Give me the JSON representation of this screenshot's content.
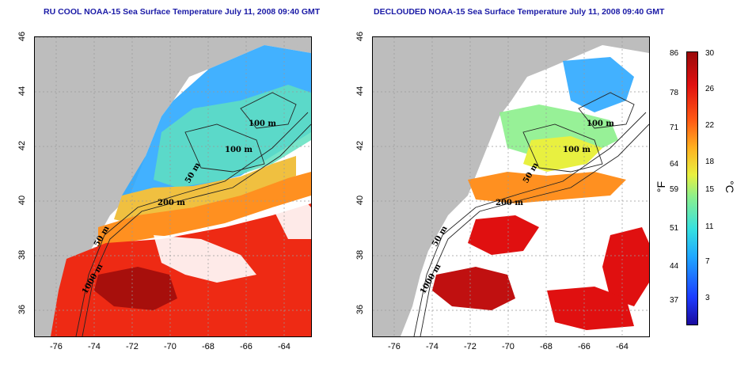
{
  "left_panel": {
    "title": "RU COOL NOAA-15 Sea Surface Temperature July 11, 2008 09:40 GMT",
    "contour_labels": [
      "100 m",
      "100 m",
      "50 m",
      "200 m",
      "50 m",
      "1000 m"
    ]
  },
  "right_panel": {
    "title": "DECLOUDED NOAA-15 Sea Surface Temperature July 11, 2008 09:40 GMT",
    "contour_labels": [
      "100 m",
      "100 m",
      "50 m",
      "200 m",
      "50 m",
      "1000 m"
    ]
  },
  "axes": {
    "x_ticks": [
      "-76",
      "-74",
      "-72",
      "-70",
      "-68",
      "-66",
      "-64"
    ],
    "y_ticks": [
      "46",
      "44",
      "42",
      "40",
      "38",
      "36"
    ]
  },
  "colorbar": {
    "fahrenheit_ticks": [
      "86",
      "78",
      "71",
      "64",
      "59",
      "51",
      "44",
      "37"
    ],
    "celsius_ticks": [
      "30",
      "26",
      "22",
      "18",
      "15",
      "11",
      "7",
      "3"
    ],
    "fahrenheit_unit": "°F",
    "celsius_unit": "°C",
    "colors": [
      "#1a0a9e",
      "#1c3cff",
      "#1fa8ff",
      "#36e0e0",
      "#8cf08c",
      "#e8f040",
      "#ffb020",
      "#ff5a14",
      "#e01010",
      "#9a0a0a"
    ]
  },
  "colors": {
    "land": "#bdbdbd",
    "title": "#1a1aa6"
  }
}
